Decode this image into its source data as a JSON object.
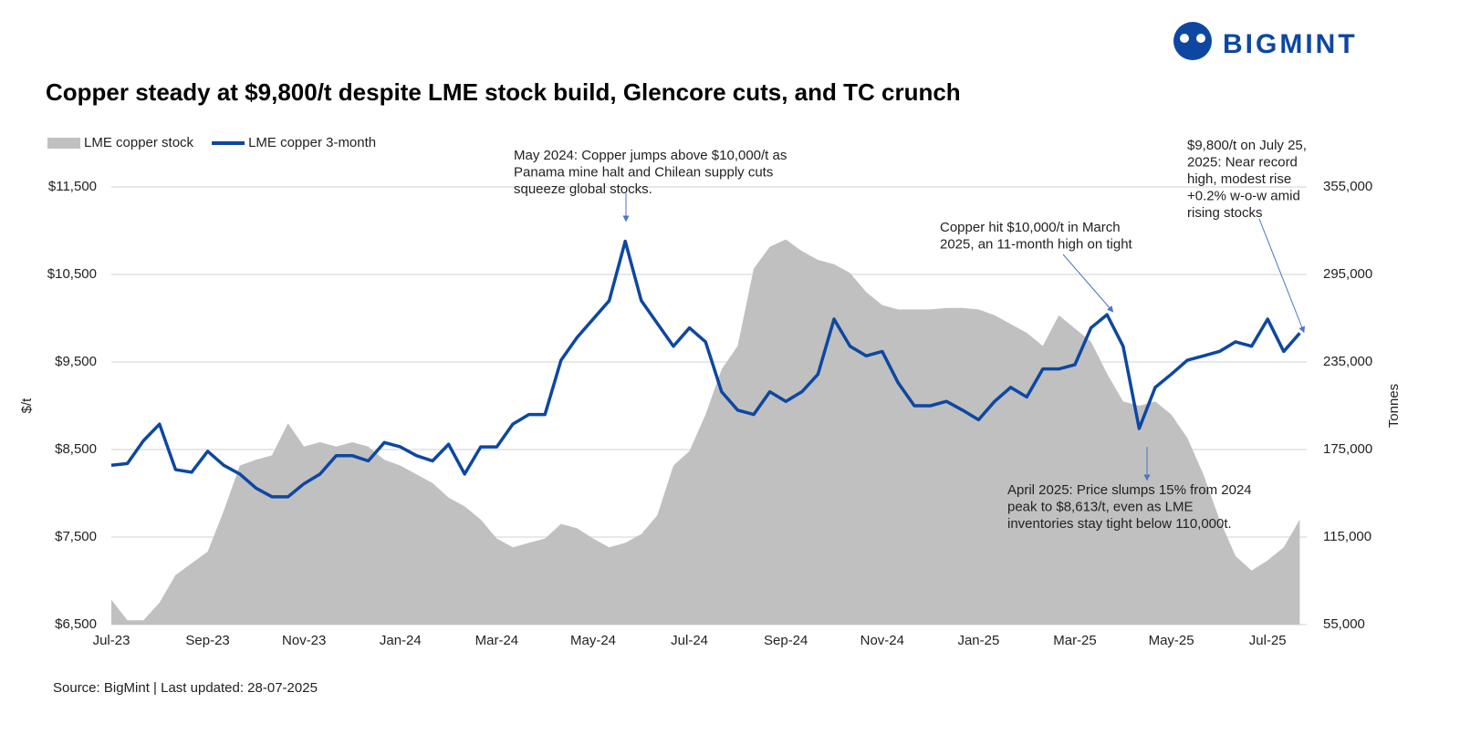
{
  "logo": "BIGMINT",
  "source": "Source: BigMint | Last updated: 28-07-2025",
  "chart_data": {
    "type": "line-area",
    "title": "Copper steady at $9,800/t despite LME stock build, Glencore cuts, and TC crunch",
    "ylabel": "$/t",
    "y2label": "Tonnes",
    "grid": true,
    "legend": "top-left",
    "categories": [
      "Jul-23",
      null,
      null,
      null,
      null,
      null,
      "Sep-23",
      null,
      null,
      null,
      null,
      null,
      "Nov-23",
      null,
      null,
      null,
      null,
      null,
      "Jan-24",
      null,
      null,
      null,
      null,
      null,
      "Mar-24",
      null,
      null,
      null,
      null,
      null,
      "May-24",
      null,
      null,
      null,
      null,
      null,
      "Jul-24",
      null,
      null,
      null,
      null,
      null,
      "Sep-24",
      null,
      null,
      null,
      null,
      null,
      "Nov-24",
      null,
      null,
      null,
      null,
      null,
      "Jan-25",
      null,
      null,
      null,
      null,
      null,
      "Mar-25",
      null,
      null,
      null,
      null,
      null,
      "May-25",
      null,
      null,
      null,
      null,
      null,
      "Jul-25",
      null,
      null
    ],
    "series": [
      {
        "name": "LME copper stock",
        "type": "area",
        "axis": "y2",
        "color": "#c0c0c0",
        "values": [
          72000,
          58000,
          58000,
          70000,
          89000,
          97000,
          105000,
          133000,
          164000,
          168000,
          171000,
          193000,
          177000,
          180000,
          177000,
          180000,
          177000,
          168000,
          164000,
          158000,
          152000,
          142000,
          136000,
          127000,
          114000,
          108000,
          111000,
          114000,
          124000,
          121000,
          114000,
          108000,
          111000,
          117000,
          130000,
          164000,
          174000,
          199000,
          230000,
          246000,
          299000,
          314000,
          319000,
          311000,
          305000,
          302000,
          296000,
          283000,
          274000,
          271000,
          271000,
          271000,
          272000,
          272000,
          271000,
          267000,
          261000,
          255000,
          246000,
          267000,
          258000,
          249000,
          227000,
          208000,
          205000,
          208000,
          199000,
          183000,
          158000,
          127000,
          102000,
          92000,
          99000,
          108000,
          127000
        ]
      },
      {
        "name": "LME copper 3-month",
        "type": "line",
        "axis": "y",
        "color": "#0d47a1",
        "values": [
          8320,
          8340,
          8600,
          8790,
          8270,
          8240,
          8480,
          8320,
          8220,
          8060,
          7960,
          7960,
          8110,
          8220,
          8430,
          8430,
          8370,
          8580,
          8530,
          8430,
          8370,
          8560,
          8220,
          8530,
          8530,
          8790,
          8900,
          8900,
          9520,
          9780,
          9990,
          10200,
          10880,
          10200,
          9940,
          9680,
          9890,
          9730,
          9160,
          8950,
          8900,
          9160,
          9050,
          9160,
          9360,
          9990,
          9680,
          9570,
          9620,
          9260,
          9000,
          9000,
          9050,
          8950,
          8840,
          9050,
          9210,
          9100,
          9420,
          9420,
          9470,
          9890,
          10040,
          9680,
          8740,
          9210,
          9360,
          9520,
          9570,
          9620,
          9730,
          9680,
          9990,
          9620,
          9830
        ]
      }
    ],
    "ylim": [
      6500,
      11500
    ],
    "yticks": [
      {
        "value": 6500,
        "label": "$6,500"
      },
      {
        "value": 7500,
        "label": "$7,500"
      },
      {
        "value": 8500,
        "label": "$8,500"
      },
      {
        "value": 9500,
        "label": "$9,500"
      },
      {
        "value": 10500,
        "label": "$10,500"
      },
      {
        "value": 11500,
        "label": "$11,500"
      }
    ],
    "y2lim": [
      55000,
      355000
    ],
    "y2ticks": [
      {
        "value": 55000,
        "label": "55,000"
      },
      {
        "value": 115000,
        "label": "115,000"
      },
      {
        "value": 175000,
        "label": "175,000"
      },
      {
        "value": 235000,
        "label": "235,000"
      },
      {
        "value": 295000,
        "label": "295,000"
      },
      {
        "value": 355000,
        "label": "355,000"
      }
    ],
    "annotations": [
      {
        "lines": [
          "May 2024: Copper jumps above $10,000/t as",
          "Panama mine halt and Chilean supply cuts",
          "squeeze global stocks."
        ]
      },
      {
        "lines": [
          "Copper hit $10,000/t in March",
          "2025, an 11-month high on tight"
        ]
      },
      {
        "lines": [
          "April 2025: Price slumps 15% from 2024",
          "peak to $8,613/t, even as LME",
          "inventories stay tight below 110,000t."
        ]
      },
      {
        "lines": [
          "$9,800/t on July 25,",
          "2025: Near record",
          "high, modest rise",
          "+0.2% w-o-w amid",
          "rising stocks"
        ]
      }
    ]
  }
}
